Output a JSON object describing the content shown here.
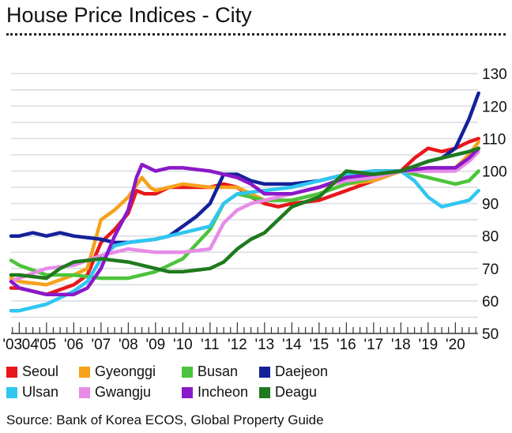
{
  "title": "House Price Indices - City",
  "source": "Source: Bank of Korea ECOS, Global Property Guide",
  "chart_data": {
    "type": "line",
    "title": "House Price Indices - City",
    "xlabel": "",
    "ylabel": "",
    "ylim": [
      50,
      130
    ],
    "xlim": [
      2003.7,
      2020.85
    ],
    "yticks": [
      50,
      60,
      70,
      80,
      90,
      100,
      110,
      120,
      130
    ],
    "xtick_labels": [
      {
        "label": "'03",
        "x": 2003.75
      },
      {
        "label": "'04",
        "x": 2004.35
      },
      {
        "label": "'05",
        "x": 2005
      },
      {
        "label": "'06",
        "x": 2006
      },
      {
        "label": "'07",
        "x": 2007
      },
      {
        "label": "'08",
        "x": 2008
      },
      {
        "label": "'09",
        "x": 2009
      },
      {
        "label": "'10",
        "x": 2010
      },
      {
        "label": "'11",
        "x": 2011
      },
      {
        "label": "'12",
        "x": 2012
      },
      {
        "label": "'13",
        "x": 2013
      },
      {
        "label": "'14",
        "x": 2014
      },
      {
        "label": "'15",
        "x": 2015
      },
      {
        "label": "'16",
        "x": 2016
      },
      {
        "label": "'17",
        "x": 2017
      },
      {
        "label": "'18",
        "x": 2018
      },
      {
        "label": "'19",
        "x": 2019
      },
      {
        "label": "'20",
        "x": 2020
      }
    ],
    "grid": true,
    "legend_position": "bottom",
    "series": [
      {
        "name": "Seoul",
        "color": "#e8171c",
        "points": [
          [
            2003.7,
            64
          ],
          [
            2004,
            64
          ],
          [
            2005,
            62
          ],
          [
            2006,
            65
          ],
          [
            2006.5,
            68
          ],
          [
            2007,
            78
          ],
          [
            2007.5,
            82
          ],
          [
            2008,
            87
          ],
          [
            2008.3,
            94
          ],
          [
            2008.6,
            93
          ],
          [
            2009,
            93
          ],
          [
            2009.5,
            95
          ],
          [
            2010,
            95
          ],
          [
            2011,
            95
          ],
          [
            2011.5,
            96
          ],
          [
            2012,
            95
          ],
          [
            2012.5,
            92
          ],
          [
            2013,
            90
          ],
          [
            2013.5,
            89
          ],
          [
            2014,
            90
          ],
          [
            2015,
            91
          ],
          [
            2016,
            94
          ],
          [
            2017,
            97
          ],
          [
            2018,
            100
          ],
          [
            2018.5,
            104
          ],
          [
            2019,
            107
          ],
          [
            2019.5,
            106
          ],
          [
            2020,
            107
          ],
          [
            2020.5,
            109
          ],
          [
            2020.85,
            110
          ]
        ]
      },
      {
        "name": "Gyeonggi",
        "color": "#f7a21b",
        "points": [
          [
            2003.7,
            67
          ],
          [
            2004,
            66
          ],
          [
            2005,
            65
          ],
          [
            2006,
            68
          ],
          [
            2006.5,
            70
          ],
          [
            2007,
            85
          ],
          [
            2007.5,
            88
          ],
          [
            2008,
            92
          ],
          [
            2008.5,
            98
          ],
          [
            2008.8,
            95
          ],
          [
            2009,
            94
          ],
          [
            2010,
            96
          ],
          [
            2011,
            95
          ],
          [
            2012,
            95
          ],
          [
            2012.5,
            93
          ],
          [
            2013,
            91
          ],
          [
            2014,
            91
          ],
          [
            2015,
            93
          ],
          [
            2016,
            96
          ],
          [
            2017,
            97
          ],
          [
            2018,
            100
          ],
          [
            2019,
            101
          ],
          [
            2019.5,
            100
          ],
          [
            2020,
            101
          ],
          [
            2020.5,
            105
          ],
          [
            2020.85,
            109
          ]
        ]
      },
      {
        "name": "Busan",
        "color": "#4cc43c",
        "points": [
          [
            2003.7,
            72.5
          ],
          [
            2004,
            71
          ],
          [
            2005,
            68
          ],
          [
            2006,
            68
          ],
          [
            2007,
            67
          ],
          [
            2008,
            67
          ],
          [
            2009,
            69
          ],
          [
            2010,
            73
          ],
          [
            2011,
            82
          ],
          [
            2011.5,
            90
          ],
          [
            2012,
            93
          ],
          [
            2012.5,
            92
          ],
          [
            2013,
            91
          ],
          [
            2014,
            91
          ],
          [
            2015,
            93
          ],
          [
            2016,
            96
          ],
          [
            2017,
            98
          ],
          [
            2018,
            100
          ],
          [
            2019,
            98
          ],
          [
            2020,
            96
          ],
          [
            2020.5,
            97
          ],
          [
            2020.85,
            100
          ]
        ]
      },
      {
        "name": "Daejeon",
        "color": "#14219a",
        "points": [
          [
            2003.7,
            80
          ],
          [
            2004,
            80
          ],
          [
            2004.5,
            81
          ],
          [
            2005,
            80
          ],
          [
            2005.5,
            81
          ],
          [
            2006,
            80
          ],
          [
            2007,
            79
          ],
          [
            2007.5,
            78
          ],
          [
            2008,
            78
          ],
          [
            2009,
            79
          ],
          [
            2009.5,
            80
          ],
          [
            2010,
            83
          ],
          [
            2010.5,
            86
          ],
          [
            2011,
            90
          ],
          [
            2011.5,
            99
          ],
          [
            2012,
            99
          ],
          [
            2012.5,
            97
          ],
          [
            2013,
            96
          ],
          [
            2014,
            96
          ],
          [
            2015,
            97
          ],
          [
            2016,
            99
          ],
          [
            2017,
            100
          ],
          [
            2018,
            100
          ],
          [
            2019,
            103
          ],
          [
            2019.5,
            104
          ],
          [
            2020,
            107
          ],
          [
            2020.5,
            116
          ],
          [
            2020.85,
            124
          ]
        ]
      },
      {
        "name": "Ulsan",
        "color": "#2fc6f0",
        "points": [
          [
            2003.7,
            57
          ],
          [
            2004,
            57
          ],
          [
            2005,
            59
          ],
          [
            2006,
            63
          ],
          [
            2006.5,
            66
          ],
          [
            2007,
            73
          ],
          [
            2007.5,
            77
          ],
          [
            2008,
            78
          ],
          [
            2009,
            79
          ],
          [
            2010,
            81
          ],
          [
            2011,
            83
          ],
          [
            2011.5,
            90
          ],
          [
            2012,
            93
          ],
          [
            2013,
            94
          ],
          [
            2014,
            95
          ],
          [
            2015,
            97
          ],
          [
            2016,
            99
          ],
          [
            2017,
            100
          ],
          [
            2018,
            100
          ],
          [
            2018.5,
            97
          ],
          [
            2019,
            92
          ],
          [
            2019.5,
            89
          ],
          [
            2020,
            90
          ],
          [
            2020.5,
            91
          ],
          [
            2020.85,
            94
          ]
        ]
      },
      {
        "name": "Gwangju",
        "color": "#e88be8",
        "points": [
          [
            2003.7,
            66
          ],
          [
            2004,
            67
          ],
          [
            2005,
            70
          ],
          [
            2006,
            71
          ],
          [
            2007,
            74
          ],
          [
            2008,
            76
          ],
          [
            2009,
            75
          ],
          [
            2010,
            75
          ],
          [
            2011,
            76
          ],
          [
            2011.5,
            84
          ],
          [
            2012,
            88
          ],
          [
            2012.5,
            90
          ],
          [
            2013,
            91
          ],
          [
            2014,
            93
          ],
          [
            2015,
            95
          ],
          [
            2016,
            97
          ],
          [
            2017,
            98
          ],
          [
            2018,
            100
          ],
          [
            2019,
            100
          ],
          [
            2020,
            100
          ],
          [
            2020.5,
            103
          ],
          [
            2020.85,
            106
          ]
        ]
      },
      {
        "name": "Incheon",
        "color": "#8a19c9",
        "points": [
          [
            2003.7,
            66
          ],
          [
            2004,
            64
          ],
          [
            2005,
            62
          ],
          [
            2006,
            62
          ],
          [
            2006.5,
            64
          ],
          [
            2007,
            70
          ],
          [
            2007.5,
            80
          ],
          [
            2008,
            88
          ],
          [
            2008.3,
            98
          ],
          [
            2008.5,
            102
          ],
          [
            2009,
            100
          ],
          [
            2009.5,
            101
          ],
          [
            2010,
            101
          ],
          [
            2011,
            100
          ],
          [
            2011.5,
            99
          ],
          [
            2012,
            98
          ],
          [
            2012.5,
            96
          ],
          [
            2013,
            93
          ],
          [
            2014,
            93
          ],
          [
            2015,
            95
          ],
          [
            2016,
            98
          ],
          [
            2017,
            99
          ],
          [
            2018,
            100
          ],
          [
            2019,
            101
          ],
          [
            2020,
            101
          ],
          [
            2020.5,
            104
          ],
          [
            2020.85,
            107
          ]
        ]
      },
      {
        "name": "Deagu",
        "color": "#1e7a1e",
        "points": [
          [
            2003.7,
            68
          ],
          [
            2004,
            68
          ],
          [
            2005,
            67
          ],
          [
            2005.5,
            70
          ],
          [
            2006,
            72
          ],
          [
            2007,
            73
          ],
          [
            2008,
            72
          ],
          [
            2009,
            70
          ],
          [
            2009.5,
            69
          ],
          [
            2010,
            69
          ],
          [
            2011,
            70
          ],
          [
            2011.5,
            72
          ],
          [
            2012,
            76
          ],
          [
            2012.5,
            79
          ],
          [
            2013,
            81
          ],
          [
            2013.5,
            85
          ],
          [
            2014,
            89
          ],
          [
            2015,
            92
          ],
          [
            2015.5,
            96
          ],
          [
            2016,
            100
          ],
          [
            2017,
            99
          ],
          [
            2018,
            100
          ],
          [
            2019,
            103
          ],
          [
            2020,
            105
          ],
          [
            2020.5,
            106
          ],
          [
            2020.85,
            107
          ]
        ]
      }
    ]
  }
}
